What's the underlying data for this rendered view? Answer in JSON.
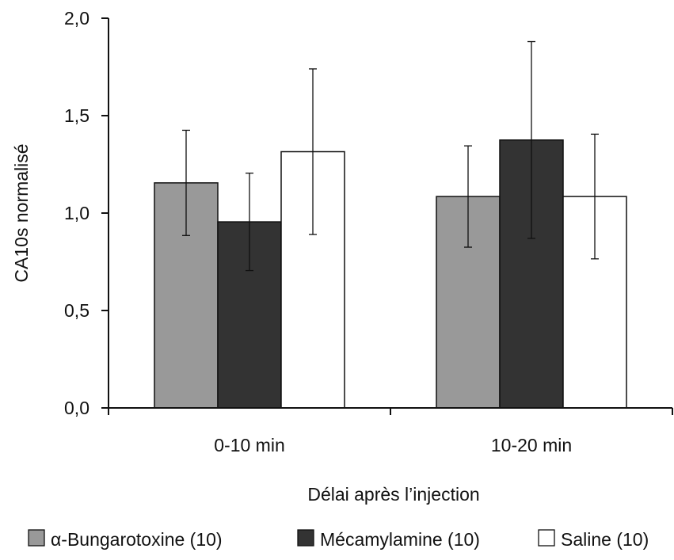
{
  "chart_data": {
    "type": "bar",
    "title": "",
    "xlabel": "Délai après l’injection",
    "ylabel": "CA10s normalisé",
    "categories": [
      "0-10 min",
      "10-20 min"
    ],
    "ylim": [
      0,
      2.0
    ],
    "yticks": [
      0.0,
      0.5,
      1.0,
      1.5,
      2.0
    ],
    "ytick_labels": [
      "0,0",
      "0,5",
      "1,0",
      "1,5",
      "2,0"
    ],
    "grid": false,
    "legend_position": "bottom",
    "series": [
      {
        "name": "α-Bungarotoxine (10)",
        "color": "#999999",
        "values": [
          1.155,
          1.085
        ],
        "errors": [
          0.27,
          0.26
        ]
      },
      {
        "name": "Mécamylamine (10)",
        "color": "#333333",
        "values": [
          0.955,
          1.375
        ],
        "errors": [
          0.25,
          0.505
        ]
      },
      {
        "name": "Saline (10)",
        "color": "#ffffff",
        "values": [
          1.315,
          1.085
        ],
        "errors": [
          0.425,
          0.32
        ]
      }
    ]
  }
}
